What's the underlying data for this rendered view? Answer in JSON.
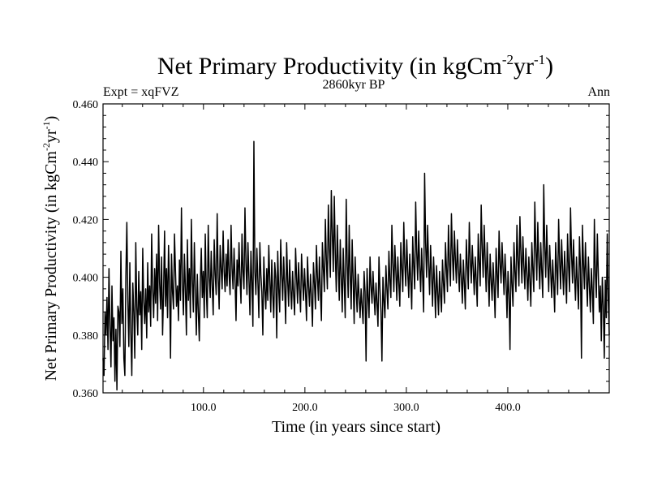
{
  "chart_data": {
    "type": "line",
    "title": "Net Primary Productivity (in kgCm",
    "title_exp1": "-2",
    "title_mid": "yr",
    "title_exp2": "-1",
    "title_end": ")",
    "subtitle_left": "Expt = xqFVZ",
    "subtitle_center": "2860kyr BP",
    "subtitle_right": "Ann",
    "xlabel": "Time (in years since start)",
    "ylabel": "Net Primary Productivity (in kgCm",
    "ylabel_exp1": "-2",
    "ylabel_mid": "yr",
    "ylabel_exp2": "-1",
    "ylabel_end": ")",
    "xlim": [
      1,
      500
    ],
    "ylim": [
      0.36,
      0.46
    ],
    "xticks": [
      100,
      200,
      300,
      400
    ],
    "xtick_labels": [
      "100.0",
      "200.0",
      "300.0",
      "400.0"
    ],
    "yticks": [
      0.36,
      0.38,
      0.4,
      0.42,
      0.44,
      0.46
    ],
    "ytick_labels": [
      "0.360",
      "0.380",
      "0.400",
      "0.420",
      "0.440",
      "0.460"
    ],
    "line_color": "#000000",
    "series": [
      {
        "name": "NPP",
        "x_start": 1,
        "x_step": 1,
        "values": [
          0.372,
          0.366,
          0.388,
          0.38,
          0.393,
          0.375,
          0.403,
          0.383,
          0.369,
          0.397,
          0.378,
          0.386,
          0.364,
          0.382,
          0.361,
          0.39,
          0.388,
          0.376,
          0.409,
          0.384,
          0.396,
          0.372,
          0.366,
          0.4,
          0.419,
          0.392,
          0.376,
          0.405,
          0.381,
          0.366,
          0.398,
          0.388,
          0.372,
          0.412,
          0.39,
          0.38,
          0.402,
          0.387,
          0.395,
          0.375,
          0.41,
          0.392,
          0.384,
          0.396,
          0.379,
          0.405,
          0.388,
          0.397,
          0.383,
          0.415,
          0.396,
          0.386,
          0.403,
          0.391,
          0.408,
          0.385,
          0.418,
          0.398,
          0.389,
          0.407,
          0.38,
          0.395,
          0.416,
          0.39,
          0.403,
          0.386,
          0.411,
          0.397,
          0.372,
          0.408,
          0.395,
          0.389,
          0.415,
          0.402,
          0.39,
          0.397,
          0.385,
          0.406,
          0.392,
          0.424,
          0.398,
          0.387,
          0.408,
          0.396,
          0.38,
          0.413,
          0.392,
          0.403,
          0.386,
          0.42,
          0.399,
          0.388,
          0.412,
          0.395,
          0.38,
          0.401,
          0.388,
          0.378,
          0.398,
          0.41,
          0.393,
          0.402,
          0.386,
          0.415,
          0.396,
          0.386,
          0.418,
          0.4,
          0.393,
          0.409,
          0.397,
          0.387,
          0.413,
          0.401,
          0.394,
          0.422,
          0.4,
          0.389,
          0.411,
          0.403,
          0.396,
          0.416,
          0.402,
          0.395,
          0.408,
          0.397,
          0.413,
          0.401,
          0.394,
          0.418,
          0.403,
          0.396,
          0.41,
          0.399,
          0.385,
          0.406,
          0.397,
          0.412,
          0.4,
          0.391,
          0.415,
          0.402,
          0.396,
          0.424,
          0.405,
          0.394,
          0.412,
          0.4,
          0.387,
          0.409,
          0.398,
          0.383,
          0.447,
          0.402,
          0.394,
          0.41,
          0.399,
          0.386,
          0.412,
          0.401,
          0.395,
          0.38,
          0.407,
          0.396,
          0.389,
          0.403,
          0.392,
          0.411,
          0.399,
          0.388,
          0.406,
          0.394,
          0.386,
          0.405,
          0.4,
          0.379,
          0.409,
          0.396,
          0.388,
          0.413,
          0.401,
          0.392,
          0.407,
          0.397,
          0.384,
          0.412,
          0.399,
          0.39,
          0.406,
          0.396,
          0.389,
          0.402,
          0.394,
          0.387,
          0.41,
          0.4,
          0.391,
          0.405,
          0.396,
          0.388,
          0.408,
          0.399,
          0.392,
          0.403,
          0.395,
          0.385,
          0.407,
          0.397,
          0.39,
          0.401,
          0.393,
          0.383,
          0.405,
          0.398,
          0.389,
          0.411,
          0.4,
          0.392,
          0.407,
          0.395,
          0.385,
          0.412,
          0.403,
          0.395,
          0.42,
          0.406,
          0.396,
          0.425,
          0.41,
          0.4,
          0.43,
          0.415,
          0.402,
          0.428,
          0.408,
          0.395,
          0.418,
          0.404,
          0.392,
          0.413,
          0.4,
          0.388,
          0.41,
          0.398,
          0.386,
          0.427,
          0.405,
          0.393,
          0.418,
          0.401,
          0.389,
          0.413,
          0.399,
          0.384,
          0.407,
          0.396,
          0.388,
          0.401,
          0.393,
          0.386,
          0.396,
          0.39,
          0.384,
          0.402,
          0.395,
          0.371,
          0.403,
          0.393,
          0.386,
          0.407,
          0.397,
          0.391,
          0.402,
          0.394,
          0.387,
          0.398,
          0.391,
          0.383,
          0.407,
          0.396,
          0.388,
          0.371,
          0.4,
          0.392,
          0.386,
          0.404,
          0.396,
          0.389,
          0.409,
          0.399,
          0.393,
          0.418,
          0.405,
          0.395,
          0.411,
          0.402,
          0.392,
          0.407,
          0.398,
          0.39,
          0.412,
          0.403,
          0.395,
          0.419,
          0.405,
          0.397,
          0.413,
          0.402,
          0.393,
          0.408,
          0.399,
          0.389,
          0.414,
          0.404,
          0.396,
          0.426,
          0.409,
          0.399,
          0.416,
          0.404,
          0.395,
          0.41,
          0.4,
          0.388,
          0.436,
          0.412,
          0.4,
          0.418,
          0.405,
          0.394,
          0.411,
          0.401,
          0.39,
          0.407,
          0.398,
          0.386,
          0.404,
          0.395,
          0.387,
          0.402,
          0.394,
          0.388,
          0.406,
          0.398,
          0.391,
          0.412,
          0.403,
          0.395,
          0.418,
          0.405,
          0.397,
          0.422,
          0.408,
          0.399,
          0.416,
          0.406,
          0.398,
          0.413,
          0.403,
          0.395,
          0.408,
          0.4,
          0.391,
          0.406,
          0.398,
          0.389,
          0.413,
          0.404,
          0.396,
          0.419,
          0.406,
          0.398,
          0.411,
          0.403,
          0.394,
          0.407,
          0.399,
          0.39,
          0.415,
          0.405,
          0.397,
          0.425,
          0.41,
          0.4,
          0.418,
          0.406,
          0.395,
          0.412,
          0.401,
          0.39,
          0.408,
          0.399,
          0.392,
          0.405,
          0.397,
          0.386,
          0.41,
          0.401,
          0.393,
          0.416,
          0.405,
          0.398,
          0.412,
          0.403,
          0.394,
          0.408,
          0.399,
          0.386,
          0.402,
          0.394,
          0.375,
          0.407,
          0.398,
          0.39,
          0.412,
          0.402,
          0.395,
          0.418,
          0.406,
          0.397,
          0.421,
          0.408,
          0.398,
          0.414,
          0.404,
          0.396,
          0.41,
          0.401,
          0.392,
          0.407,
          0.399,
          0.39,
          0.412,
          0.403,
          0.395,
          0.426,
          0.41,
          0.399,
          0.419,
          0.406,
          0.396,
          0.412,
          0.402,
          0.393,
          0.432,
          0.411,
          0.4,
          0.418,
          0.405,
          0.395,
          0.411,
          0.402,
          0.393,
          0.406,
          0.398,
          0.388,
          0.412,
          0.403,
          0.394,
          0.42,
          0.406,
          0.396,
          0.413,
          0.403,
          0.394,
          0.409,
          0.4,
          0.391,
          0.415,
          0.404,
          0.395,
          0.424,
          0.408,
          0.398,
          0.413,
          0.401,
          0.392,
          0.407,
          0.398,
          0.389,
          0.414,
          0.403,
          0.372,
          0.418,
          0.405,
          0.396,
          0.412,
          0.4,
          0.39,
          0.407,
          0.397,
          0.388,
          0.403,
          0.395,
          0.384,
          0.42,
          0.402,
          0.393,
          0.415,
          0.401,
          0.388,
          0.397,
          0.378,
          0.4,
          0.39,
          0.372,
          0.399,
          0.386,
          0.415,
          0.392,
          0.38
        ]
      }
    ]
  }
}
